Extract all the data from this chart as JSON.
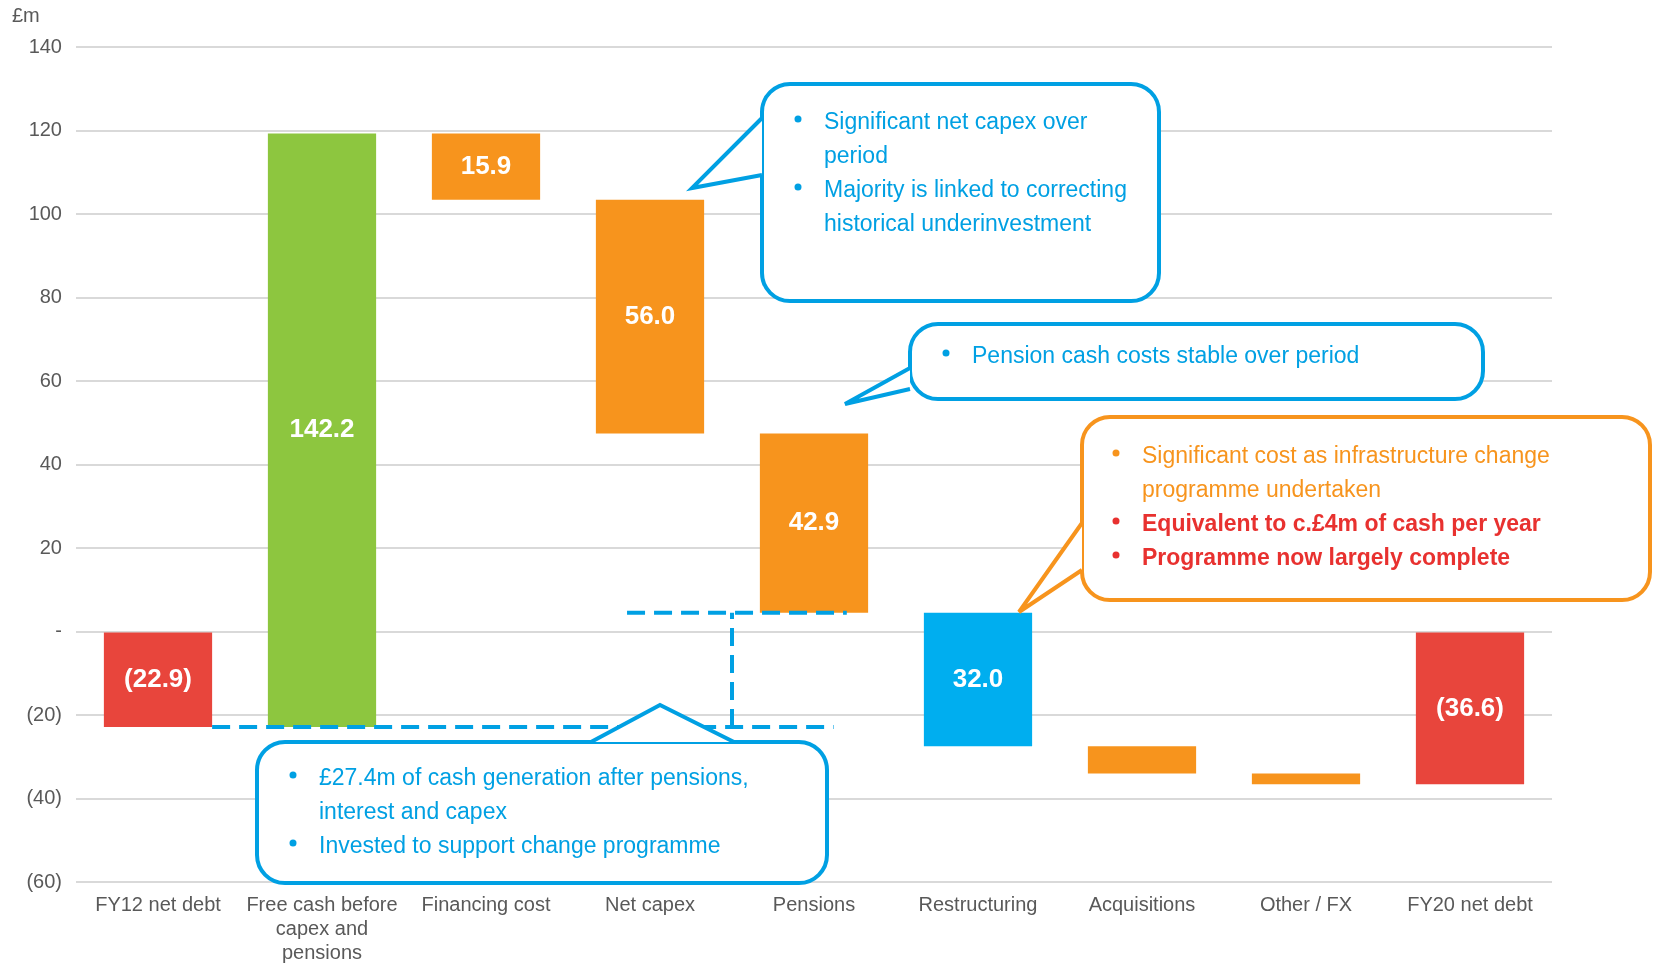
{
  "chart_data": {
    "type": "bar",
    "ylabel": "£m",
    "categories": [
      "FY12 net debt",
      "Free cash before capex and pensions",
      "Financing cost",
      "Net capex",
      "Pensions",
      "Restructuring",
      "Acquisitions",
      "Other / FX",
      "FY20 net debt"
    ],
    "values": [
      -22.9,
      142.2,
      -15.9,
      -56.0,
      -42.9,
      -32.0,
      -6.5,
      -2.6,
      -36.6
    ],
    "base": [
      0,
      -22.9,
      119.3,
      103.4,
      47.4,
      4.5,
      -27.5,
      -34.0,
      0
    ],
    "colors": [
      "#e8453c",
      "#8dc63f",
      "#f7941d",
      "#f7941d",
      "#f7941d",
      "#00aeef",
      "#f7941d",
      "#f7941d",
      "#e8453c"
    ],
    "value_labels": [
      "(22.9)",
      "142.2",
      "15.9",
      "56.0",
      "42.9",
      "32.0",
      null,
      null,
      "(36.6)"
    ],
    "ylim": [
      -60,
      140
    ],
    "yticks": [
      {
        "value": -60,
        "label": "(60)"
      },
      {
        "value": -40,
        "label": "(40)"
      },
      {
        "value": -20,
        "label": "(20)"
      },
      {
        "value": 0,
        "label": "-"
      },
      20,
      40,
      60,
      80,
      100,
      120,
      140
    ],
    "grid": "y",
    "legend": false,
    "ref_lines": [
      {
        "axis": "y",
        "value": -22.9,
        "color": "#00a0e3",
        "line_style": "dashed"
      },
      {
        "axis": "y",
        "value": 4.5,
        "color": "#00a0e3",
        "line_style": "dashed"
      }
    ],
    "annotations": [
      "Significant net capex over period\nMajority is linked to correcting historical underinvestment",
      "Pension cash costs stable over period",
      "Significant cost as infrastructure change programme undertaken\nEquivalent to c.£4m of cash per year\nProgramme now largely complete",
      "£27.4m of cash generation after pensions, interest and capex\nInvested to support change programme"
    ]
  }
}
